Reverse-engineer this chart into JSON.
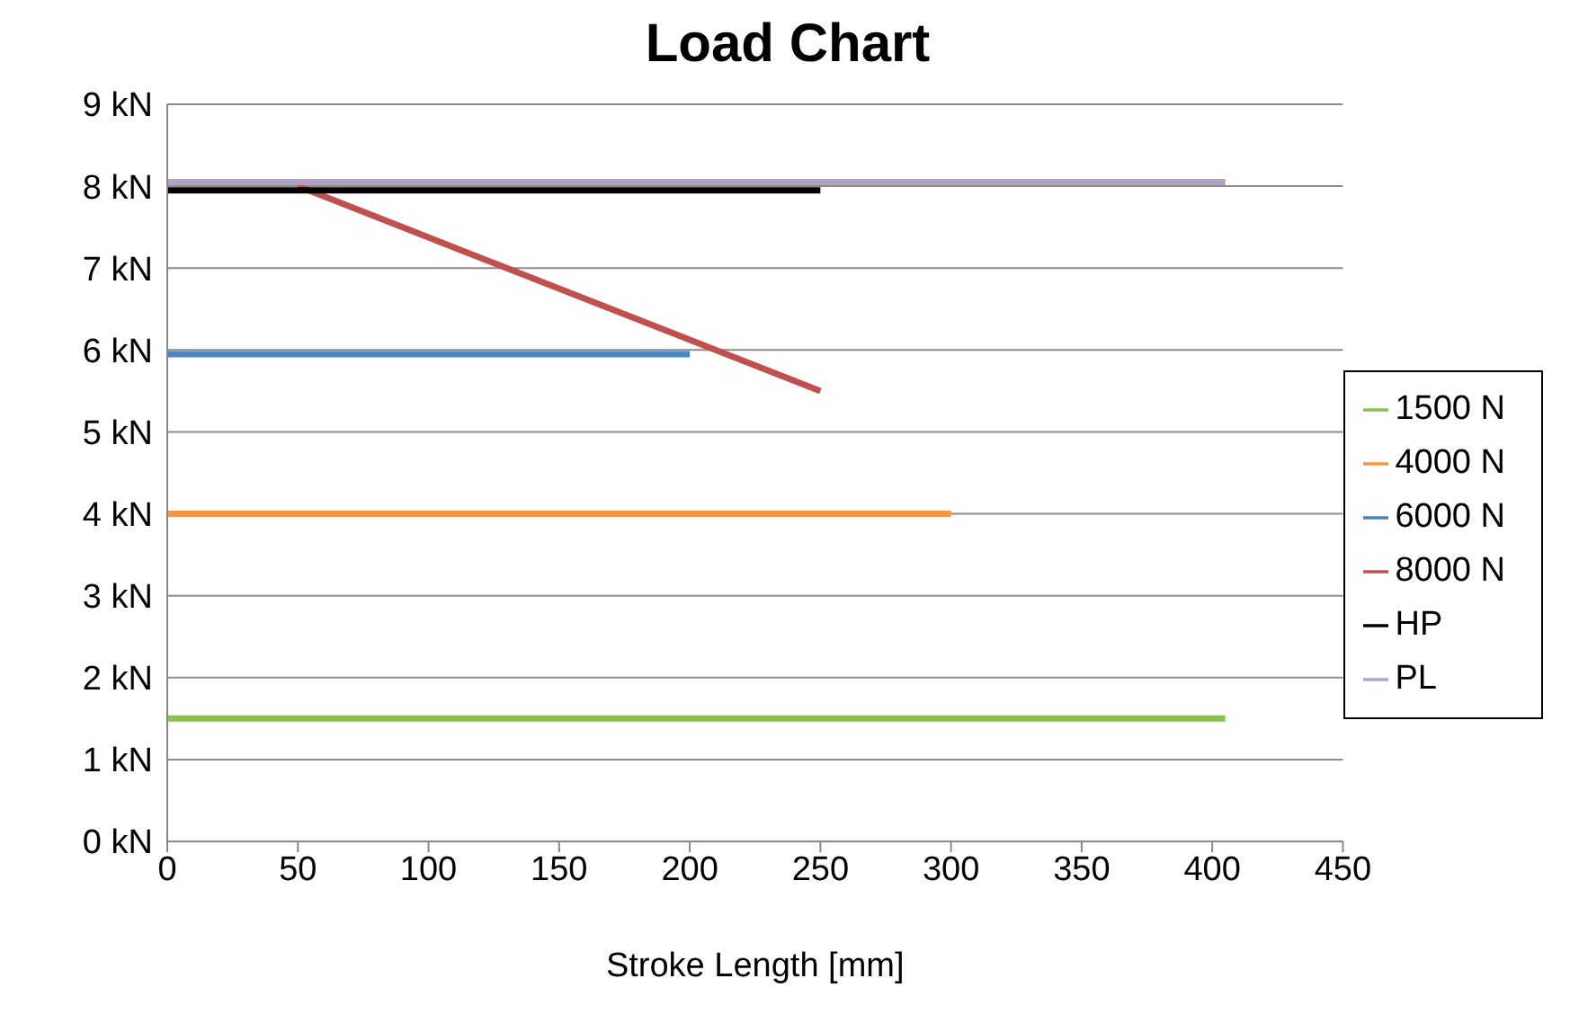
{
  "chart_data": {
    "type": "line",
    "title": "Load Chart",
    "xlabel": "Stroke Length [mm]",
    "xlim": [
      0,
      450
    ],
    "xticks": [
      0,
      50,
      100,
      150,
      200,
      250,
      300,
      350,
      400,
      450
    ],
    "ylim": [
      0,
      9
    ],
    "yticks": [
      {
        "value": 0,
        "label": "0 kN"
      },
      {
        "value": 1,
        "label": "1 kN"
      },
      {
        "value": 2,
        "label": "2 kN"
      },
      {
        "value": 3,
        "label": "3 kN"
      },
      {
        "value": 4,
        "label": "4 kN"
      },
      {
        "value": 5,
        "label": "5 kN"
      },
      {
        "value": 6,
        "label": "6 kN"
      },
      {
        "value": 7,
        "label": "7 kN"
      },
      {
        "value": 8,
        "label": "8 kN"
      },
      {
        "value": 9,
        "label": "9 kN"
      }
    ],
    "grid": "y",
    "legend": "right",
    "marker": "none",
    "line_style": "solid",
    "series": [
      {
        "name": "1500 N",
        "color": "#8cc152",
        "x": [
          0,
          405
        ],
        "values": [
          1.5,
          1.5
        ]
      },
      {
        "name": "4000 N",
        "color": "#f79646",
        "x": [
          0,
          300
        ],
        "values": [
          4,
          4
        ]
      },
      {
        "name": "6000 N",
        "color": "#4a86c4",
        "x": [
          0,
          200
        ],
        "values": [
          5.95,
          5.95
        ]
      },
      {
        "name": "8000 N",
        "color": "#c0504d",
        "x": [
          50,
          250
        ],
        "values": [
          8,
          5.5
        ]
      },
      {
        "name": "HP",
        "color": "#000000",
        "x": [
          0,
          250
        ],
        "values": [
          7.95,
          7.95
        ]
      },
      {
        "name": "PL",
        "color": "#b3a2c7",
        "x": [
          0,
          405
        ],
        "values": [
          8.05,
          8.05
        ]
      }
    ]
  }
}
